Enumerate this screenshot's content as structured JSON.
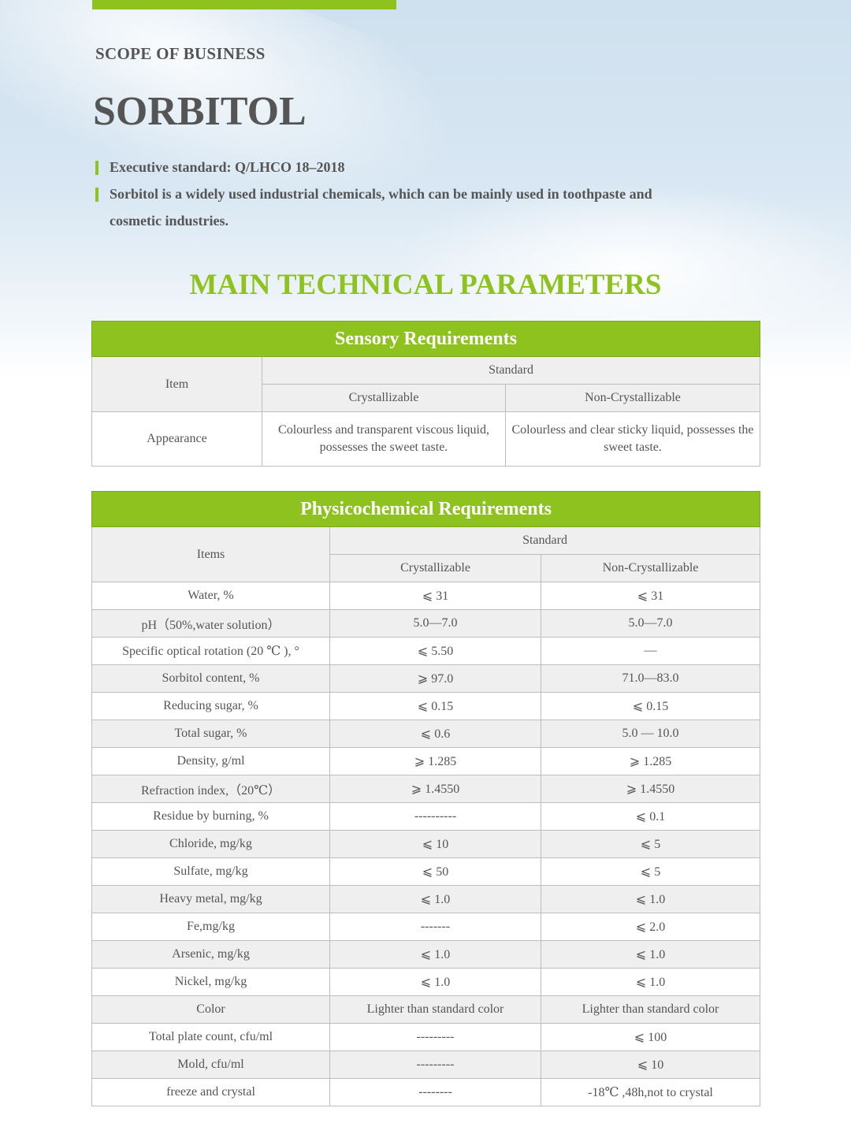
{
  "hero": {
    "label": "SCOPE OF BUSINESS",
    "title": "SORBITOL",
    "lines": [
      "Executive standard: Q/LHCO 18–2018",
      "Sorbitol is a widely used industrial chemicals, which can be mainly used in toothpaste and",
      "cosmetic industries."
    ]
  },
  "main_title": "MAIN TECHNICAL PARAMETERS",
  "accent_color": "#8dc21f",
  "sensory": {
    "title": "Sensory Requirements",
    "item": "Item",
    "standard": "Standard",
    "col1": "Crystallizable",
    "col2": "Non-Crystallizable",
    "rows": [
      {
        "item": "Appearance",
        "c": "Colourless and transparent viscous liquid, possesses the sweet taste.",
        "n": "Colourless and clear sticky liquid, possesses the sweet taste."
      }
    ]
  },
  "physico": {
    "title": "Physicochemical Requirements",
    "item": "Items",
    "standard": "Standard",
    "col1": "Crystallizable",
    "col2": "Non-Crystallizable",
    "rows": [
      {
        "item": "Water, %",
        "c": "⩽ 31",
        "n": "⩽ 31"
      },
      {
        "item": "pH（50%,water solution）",
        "c": "5.0—7.0",
        "n": "5.0—7.0"
      },
      {
        "item": "Specific optical rotation (20 ℃ ), °",
        "c": "⩽ 5.50",
        "n": "—"
      },
      {
        "item": "Sorbitol content, %",
        "c": "⩾ 97.0",
        "n": "71.0—83.0"
      },
      {
        "item": "Reducing sugar, %",
        "c": "⩽ 0.15",
        "n": "⩽ 0.15"
      },
      {
        "item": "Total sugar, %",
        "c": "⩽ 0.6",
        "n": "5.0 — 10.0"
      },
      {
        "item": "Density, g/ml",
        "c": "⩾ 1.285",
        "n": "⩾ 1.285"
      },
      {
        "item": "Refraction index,（20℃）",
        "c": "⩾ 1.4550",
        "n": "⩾ 1.4550"
      },
      {
        "item": "Residue by burning, %",
        "c": "----------",
        "n": "⩽ 0.1"
      },
      {
        "item": "Chloride, mg/kg",
        "c": "⩽ 10",
        "n": "⩽ 5"
      },
      {
        "item": "Sulfate, mg/kg",
        "c": "⩽ 50",
        "n": "⩽ 5"
      },
      {
        "item": "Heavy metal, mg/kg",
        "c": "⩽ 1.0",
        "n": "⩽ 1.0"
      },
      {
        "item": "Fe,mg/kg",
        "c": "-------",
        "n": "⩽ 2.0"
      },
      {
        "item": "Arsenic, mg/kg",
        "c": "⩽ 1.0",
        "n": "⩽ 1.0"
      },
      {
        "item": "Nickel, mg/kg",
        "c": "⩽ 1.0",
        "n": "⩽ 1.0"
      },
      {
        "item": "Color",
        "c": "Lighter than standard color",
        "n": "Lighter than standard color"
      },
      {
        "item": "Total plate count, cfu/ml",
        "c": "---------",
        "n": "⩽ 100"
      },
      {
        "item": "Mold, cfu/ml",
        "c": "---------",
        "n": "⩽ 10"
      },
      {
        "item": "freeze and crystal",
        "c": "--------",
        "n": "-18℃ ,48h,not to crystal"
      }
    ]
  }
}
